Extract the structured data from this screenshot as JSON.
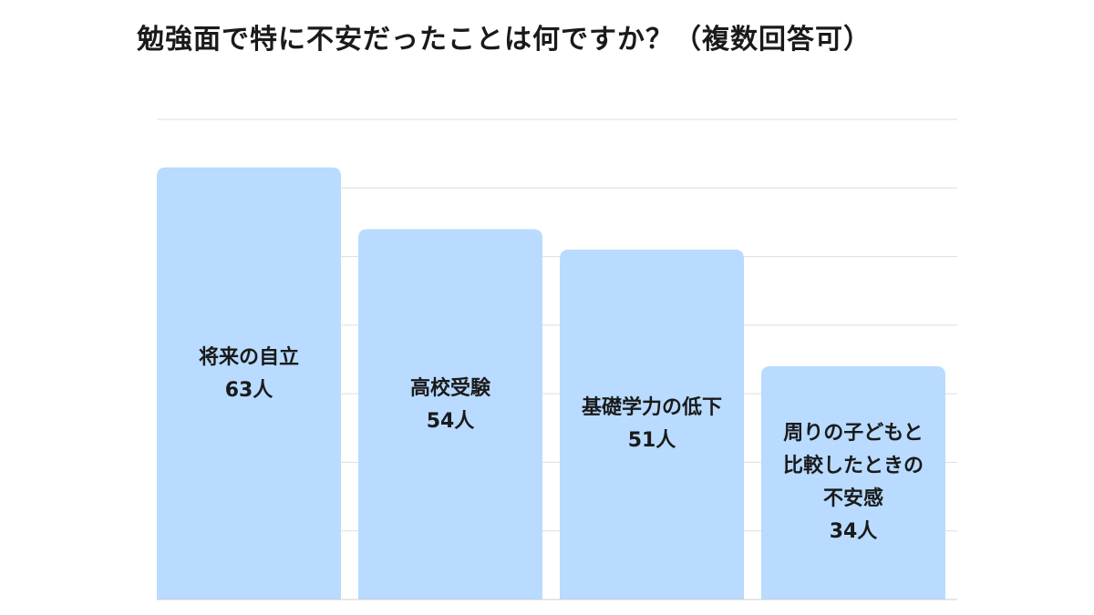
{
  "chart_data": {
    "type": "bar",
    "title": "勉強面で特に不安だったことは何ですか？（複数回答可）",
    "categories": [
      "将来の自立",
      "高校受験",
      "基礎学力の低下",
      "周りの子どもと比較したときの不安感"
    ],
    "category_display": [
      "将来の自立",
      "高校受験",
      "基礎学力の低下",
      "周りの子どもと\n比較したときの\n不安感"
    ],
    "values": [
      63,
      54,
      51,
      34
    ],
    "value_labels": [
      "63人",
      "54人",
      "51人",
      "34人"
    ],
    "unit": "人",
    "ylim": [
      0,
      70
    ],
    "grid": true,
    "bar_color": "#b8dbff",
    "grid_color": "#dddddd"
  }
}
